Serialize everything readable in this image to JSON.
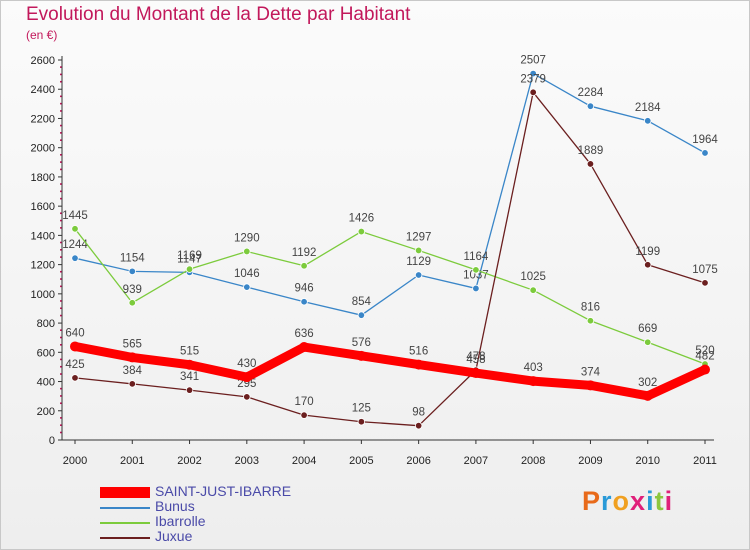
{
  "header": {
    "title": "Evolution du Montant de la Dette par Habitant",
    "subtitle": "(en €)"
  },
  "brand": {
    "text": "Proxiti",
    "colors": [
      "#e86a1a",
      "#2a9ad8",
      "#f0a020",
      "#e0207a",
      "#2a9ad8",
      "#8cc63f",
      "#e0207a"
    ]
  },
  "chart_data": {
    "type": "line",
    "title": "Evolution du Montant de la Dette par Habitant",
    "subtitle": "(en €)",
    "xlabel": "",
    "ylabel": "",
    "ylim": [
      0,
      2600
    ],
    "yticks": [
      0,
      200,
      400,
      600,
      800,
      1000,
      1200,
      1400,
      1600,
      1800,
      2000,
      2200,
      2400,
      2600
    ],
    "grid": false,
    "legend_position": "bottom-left",
    "categories": [
      "2000",
      "2001",
      "2002",
      "2003",
      "2004",
      "2005",
      "2006",
      "2007",
      "2008",
      "2009",
      "2010",
      "2011"
    ],
    "series": [
      {
        "name": "SAINT-JUST-IBARRE",
        "color": "#ff0000",
        "values": [
          640,
          565,
          515,
          430,
          636,
          576,
          516,
          458,
          403,
          374,
          302,
          482
        ],
        "labels": [
          "640",
          "565",
          "515",
          "430",
          "636",
          "576",
          "516",
          "458",
          "403",
          "374",
          "302",
          "482"
        ]
      },
      {
        "name": "Bunus",
        "color": "#3a86c8",
        "values": [
          1244,
          1154,
          1147,
          1046,
          946,
          854,
          1129,
          1037,
          2507,
          2284,
          2184,
          1964
        ],
        "labels": [
          "1244",
          "1154",
          "1147",
          "1046",
          "946",
          "854",
          "1129",
          "1037",
          "2507",
          "2284",
          "2184",
          "1964"
        ]
      },
      {
        "name": "Ibarrolle",
        "color": "#7ccb3c",
        "values": [
          1445,
          939,
          1169,
          1290,
          1192,
          1426,
          1297,
          1164,
          1025,
          816,
          669,
          520
        ],
        "labels": [
          "1445",
          "939",
          "1169",
          "1290",
          "1192",
          "1426",
          "1297",
          "1164",
          "1025",
          "816",
          "669",
          "520"
        ]
      },
      {
        "name": "Juxue",
        "color": "#6b1f1f",
        "values": [
          425,
          384,
          341,
          295,
          170,
          125,
          98,
          478,
          2379,
          1889,
          1199,
          1075
        ],
        "labels": [
          "425",
          "384",
          "341",
          "295",
          "170",
          "125",
          "98",
          "478",
          "2379",
          "1889",
          "1199",
          "1075"
        ]
      }
    ]
  }
}
